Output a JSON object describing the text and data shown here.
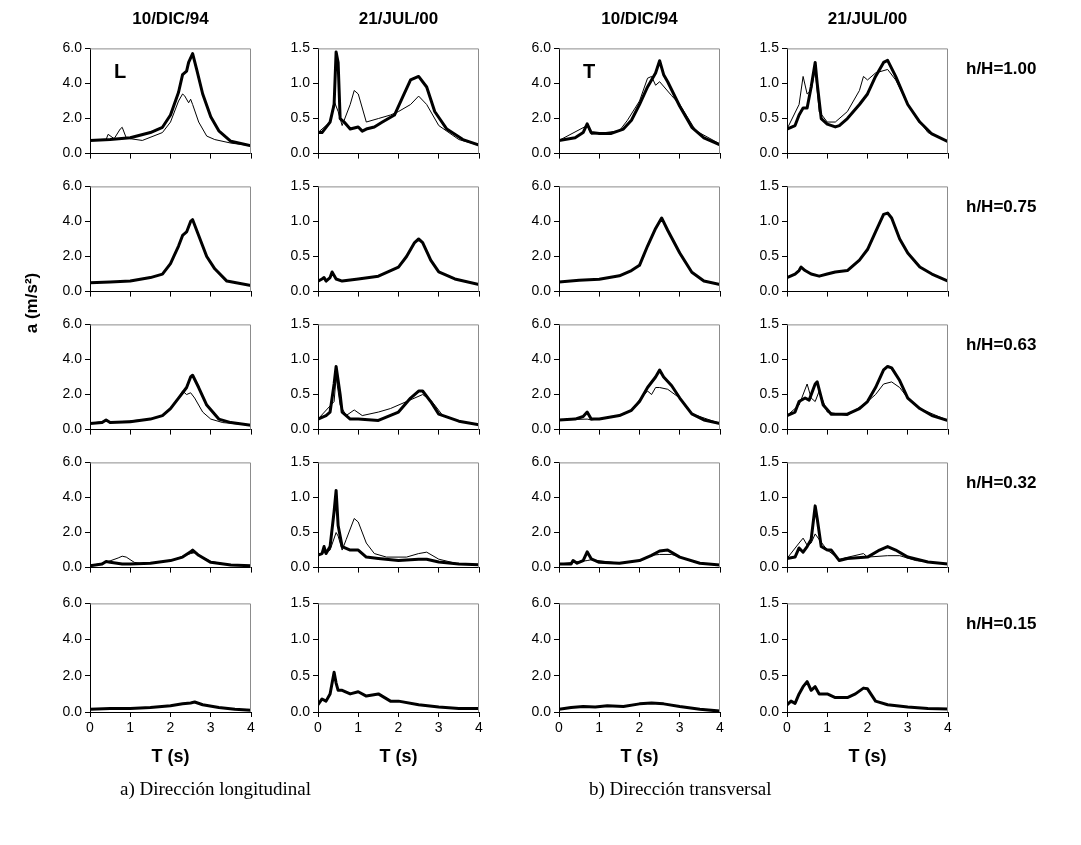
{
  "chart_data": [
    {
      "type": "line",
      "title": "10/DIC/94",
      "annotations": [
        "L"
      ],
      "marker": "none",
      "tick_labels": "y",
      "xlim": [
        0,
        4
      ],
      "xticks": [
        0,
        1,
        2,
        3,
        4
      ],
      "ylim": [
        0,
        6
      ],
      "yticks": [
        {
          "value": 0,
          "label": "0.0"
        },
        {
          "value": 2,
          "label": "2.0"
        },
        {
          "value": 4,
          "label": "4.0"
        },
        {
          "value": 6,
          "label": "6.0"
        }
      ],
      "series": [
        {
          "color": "#000000",
          "x": [
            0,
            0.5,
            1.0,
            1.5,
            1.8,
            2.0,
            2.2,
            2.3,
            2.4,
            2.45,
            2.55,
            2.65,
            2.8,
            3.0,
            3.2,
            3.5,
            4
          ],
          "values": [
            0.75,
            0.8,
            0.9,
            1.2,
            1.5,
            2.2,
            3.5,
            4.5,
            4.7,
            5.2,
            5.7,
            4.8,
            3.4,
            2.1,
            1.3,
            0.7,
            0.45
          ]
        },
        {
          "color": "#000000",
          "x": [
            0,
            0.4,
            0.45,
            0.6,
            0.75,
            0.8,
            0.9,
            1.0,
            1.3,
            1.8,
            2.0,
            2.2,
            2.3,
            2.35,
            2.45,
            2.5,
            2.55,
            2.7,
            2.9,
            3.1,
            3.5,
            4
          ],
          "values": [
            0.75,
            0.8,
            1.1,
            0.85,
            1.4,
            1.5,
            0.9,
            0.85,
            0.75,
            1.2,
            1.8,
            3.0,
            3.4,
            3.3,
            2.9,
            3.1,
            2.8,
            1.8,
            1.0,
            0.8,
            0.6,
            0.45
          ]
        }
      ]
    },
    {
      "type": "line",
      "title": "21/JUL/00",
      "marker": "none",
      "tick_labels": "y",
      "xlim": [
        0,
        4
      ],
      "xticks": [
        0,
        1,
        2,
        3,
        4
      ],
      "ylim": [
        0,
        1.5
      ],
      "yticks": [
        {
          "value": 0,
          "label": "0.0"
        },
        {
          "value": 0.5,
          "label": "0.5"
        },
        {
          "value": 1,
          "label": "1.0"
        },
        {
          "value": 1.5,
          "label": "1.5"
        }
      ],
      "series": [
        {
          "color": "#000000",
          "x": [
            0,
            0.1,
            0.3,
            0.4,
            0.45,
            0.5,
            0.55,
            0.65,
            0.8,
            1.0,
            1.1,
            1.2,
            1.4,
            1.6,
            1.9,
            2.1,
            2.3,
            2.5,
            2.7,
            2.9,
            3.2,
            3.6,
            4
          ],
          "values": [
            0.3,
            0.3,
            0.45,
            0.7,
            1.45,
            1.3,
            0.5,
            0.45,
            0.35,
            0.38,
            0.32,
            0.35,
            0.38,
            0.45,
            0.55,
            0.8,
            1.05,
            1.1,
            0.95,
            0.6,
            0.35,
            0.2,
            0.12
          ]
        },
        {
          "color": "#000000",
          "x": [
            0,
            0.3,
            0.4,
            0.5,
            0.6,
            0.8,
            0.9,
            1.0,
            1.2,
            1.5,
            1.8,
            2.0,
            2.3,
            2.5,
            2.7,
            3.0,
            3.5,
            4
          ],
          "values": [
            0.3,
            0.45,
            0.75,
            0.6,
            0.4,
            0.7,
            0.9,
            0.85,
            0.45,
            0.5,
            0.55,
            0.6,
            0.7,
            0.82,
            0.7,
            0.4,
            0.2,
            0.12
          ]
        }
      ]
    },
    {
      "type": "line",
      "title": "10/DIC/94",
      "annotations": [
        "T"
      ],
      "marker": "none",
      "tick_labels": "y",
      "xlim": [
        0,
        4
      ],
      "xticks": [
        0,
        1,
        2,
        3,
        4
      ],
      "ylim": [
        0,
        6
      ],
      "yticks": [
        {
          "value": 0,
          "label": "0.0"
        },
        {
          "value": 2,
          "label": "2.0"
        },
        {
          "value": 4,
          "label": "4.0"
        },
        {
          "value": 6,
          "label": "6.0"
        }
      ],
      "series": [
        {
          "color": "#000000",
          "x": [
            0,
            0.4,
            0.6,
            0.7,
            0.8,
            1.0,
            1.3,
            1.6,
            1.8,
            2.0,
            2.2,
            2.4,
            2.5,
            2.6,
            2.7,
            3.0,
            3.3,
            3.6,
            4
          ],
          "values": [
            0.75,
            0.9,
            1.2,
            1.7,
            1.2,
            1.15,
            1.15,
            1.4,
            1.9,
            2.8,
            3.8,
            4.6,
            5.3,
            4.5,
            4.1,
            2.7,
            1.5,
            0.9,
            0.5
          ]
        },
        {
          "color": "#000000",
          "x": [
            0,
            0.7,
            0.8,
            1.5,
            1.7,
            2.0,
            2.2,
            2.3,
            2.4,
            2.5,
            2.8,
            3.0,
            3.4,
            4
          ],
          "values": [
            0.75,
            1.6,
            1.1,
            1.3,
            1.9,
            3.0,
            4.3,
            4.4,
            3.9,
            4.1,
            3.3,
            2.8,
            1.3,
            0.55
          ]
        }
      ]
    },
    {
      "type": "line",
      "title": "21/JUL/00",
      "annotations": [
        "h/H=1.00"
      ],
      "marker": "none",
      "tick_labels": "y",
      "xlim": [
        0,
        4
      ],
      "xticks": [
        0,
        1,
        2,
        3,
        4
      ],
      "ylim": [
        0,
        1.5
      ],
      "yticks": [
        {
          "value": 0,
          "label": "0.0"
        },
        {
          "value": 0.5,
          "label": "0.5"
        },
        {
          "value": 1,
          "label": "1.0"
        },
        {
          "value": 1.5,
          "label": "1.5"
        }
      ],
      "series": [
        {
          "color": "#000000",
          "x": [
            0,
            0.2,
            0.3,
            0.4,
            0.5,
            0.6,
            0.7,
            0.75,
            0.85,
            1.0,
            1.2,
            1.3,
            1.5,
            1.8,
            2.0,
            2.2,
            2.4,
            2.5,
            2.7,
            3.0,
            3.3,
            3.6,
            4
          ],
          "values": [
            0.35,
            0.4,
            0.55,
            0.65,
            0.65,
            0.95,
            1.3,
            1.0,
            0.5,
            0.42,
            0.38,
            0.4,
            0.5,
            0.7,
            0.85,
            1.1,
            1.3,
            1.33,
            1.1,
            0.7,
            0.45,
            0.28,
            0.17
          ]
        },
        {
          "color": "#000000",
          "x": [
            0,
            0.3,
            0.4,
            0.5,
            0.6,
            0.7,
            0.8,
            1.0,
            1.2,
            1.5,
            1.8,
            1.9,
            2.0,
            2.2,
            2.5,
            2.7,
            3.0,
            3.5,
            4
          ],
          "values": [
            0.35,
            0.7,
            1.1,
            0.85,
            0.9,
            1.2,
            0.6,
            0.45,
            0.45,
            0.6,
            0.9,
            1.1,
            1.05,
            1.15,
            1.2,
            1.05,
            0.7,
            0.3,
            0.18
          ]
        }
      ]
    },
    {
      "type": "line",
      "marker": "none",
      "tick_labels": "y",
      "xlim": [
        0,
        4
      ],
      "xticks": [
        0,
        1,
        2,
        3,
        4
      ],
      "ylim": [
        0,
        6
      ],
      "yticks": [
        {
          "value": 0,
          "label": "0.0"
        },
        {
          "value": 2,
          "label": "2.0"
        },
        {
          "value": 4,
          "label": "4.0"
        },
        {
          "value": 6,
          "label": "6.0"
        }
      ],
      "series": [
        {
          "color": "#000000",
          "x": [
            0,
            0.5,
            1,
            1.5,
            1.8,
            2.0,
            2.2,
            2.3,
            2.4,
            2.5,
            2.55,
            2.7,
            2.9,
            3.1,
            3.4,
            4
          ],
          "values": [
            0.5,
            0.55,
            0.6,
            0.8,
            1.0,
            1.6,
            2.6,
            3.2,
            3.4,
            4.0,
            4.1,
            3.2,
            2.0,
            1.3,
            0.6,
            0.35
          ]
        }
      ]
    },
    {
      "type": "line",
      "marker": "none",
      "tick_labels": "y",
      "xlim": [
        0,
        4
      ],
      "xticks": [
        0,
        1,
        2,
        3,
        4
      ],
      "ylim": [
        0,
        1.5
      ],
      "yticks": [
        {
          "value": 0,
          "label": "0.0"
        },
        {
          "value": 0.5,
          "label": "0.5"
        },
        {
          "value": 1,
          "label": "1.0"
        },
        {
          "value": 1.5,
          "label": "1.5"
        }
      ],
      "series": [
        {
          "color": "#000000",
          "x": [
            0,
            0.1,
            0.15,
            0.2,
            0.3,
            0.35,
            0.45,
            0.6,
            1.0,
            1.5,
            2.0,
            2.2,
            2.4,
            2.5,
            2.6,
            2.8,
            3.0,
            3.4,
            4
          ],
          "values": [
            0.15,
            0.18,
            0.2,
            0.15,
            0.2,
            0.28,
            0.18,
            0.15,
            0.18,
            0.22,
            0.35,
            0.5,
            0.7,
            0.75,
            0.7,
            0.45,
            0.28,
            0.18,
            0.1
          ]
        }
      ]
    },
    {
      "type": "line",
      "marker": "none",
      "tick_labels": "y",
      "xlim": [
        0,
        4
      ],
      "xticks": [
        0,
        1,
        2,
        3,
        4
      ],
      "ylim": [
        0,
        6
      ],
      "yticks": [
        {
          "value": 0,
          "label": "0.0"
        },
        {
          "value": 2,
          "label": "2.0"
        },
        {
          "value": 4,
          "label": "4.0"
        },
        {
          "value": 6,
          "label": "6.0"
        }
      ],
      "series": [
        {
          "color": "#000000",
          "x": [
            0,
            0.5,
            1.0,
            1.5,
            1.8,
            2.0,
            2.2,
            2.4,
            2.5,
            2.55,
            2.7,
            3.0,
            3.3,
            3.6,
            4
          ],
          "values": [
            0.55,
            0.65,
            0.7,
            0.9,
            1.2,
            1.5,
            2.6,
            3.6,
            4.0,
            4.2,
            3.5,
            2.2,
            1.1,
            0.6,
            0.4
          ]
        }
      ]
    },
    {
      "type": "line",
      "annotations": [
        "h/H=0.75"
      ],
      "marker": "none",
      "tick_labels": "y",
      "xlim": [
        0,
        4
      ],
      "xticks": [
        0,
        1,
        2,
        3,
        4
      ],
      "ylim": [
        0,
        1.5
      ],
      "yticks": [
        {
          "value": 0,
          "label": "0.0"
        },
        {
          "value": 0.5,
          "label": "0.5"
        },
        {
          "value": 1,
          "label": "1.0"
        },
        {
          "value": 1.5,
          "label": "1.5"
        }
      ],
      "series": [
        {
          "color": "#000000",
          "x": [
            0,
            0.2,
            0.3,
            0.35,
            0.45,
            0.6,
            0.8,
            1.0,
            1.2,
            1.5,
            1.8,
            2.0,
            2.2,
            2.4,
            2.5,
            2.6,
            2.8,
            3.0,
            3.3,
            3.6,
            4
          ],
          "values": [
            0.2,
            0.25,
            0.3,
            0.35,
            0.3,
            0.25,
            0.22,
            0.25,
            0.28,
            0.3,
            0.45,
            0.6,
            0.85,
            1.1,
            1.12,
            1.05,
            0.75,
            0.55,
            0.35,
            0.25,
            0.15
          ]
        }
      ]
    },
    {
      "type": "line",
      "ylabel": "a (m/s²)",
      "marker": "none",
      "tick_labels": "y",
      "xlim": [
        0,
        4
      ],
      "xticks": [
        0,
        1,
        2,
        3,
        4
      ],
      "ylim": [
        0,
        6
      ],
      "yticks": [
        {
          "value": 0,
          "label": "0.0"
        },
        {
          "value": 2,
          "label": "2.0"
        },
        {
          "value": 4,
          "label": "4.0"
        },
        {
          "value": 6,
          "label": "6.0"
        }
      ],
      "series": [
        {
          "color": "#000000",
          "x": [
            0,
            0.3,
            0.4,
            0.5,
            1,
            1.5,
            1.8,
            2.0,
            2.2,
            2.4,
            2.5,
            2.55,
            2.7,
            2.9,
            3.2,
            3.5,
            4
          ],
          "values": [
            0.35,
            0.4,
            0.55,
            0.4,
            0.45,
            0.6,
            0.8,
            1.2,
            1.8,
            2.4,
            3.0,
            3.1,
            2.4,
            1.4,
            0.6,
            0.4,
            0.25
          ]
        },
        {
          "color": "#000000",
          "x": [
            0,
            0.4,
            0.5,
            1.5,
            1.8,
            2.0,
            2.2,
            2.3,
            2.4,
            2.5,
            2.6,
            2.8,
            3.0,
            3.3,
            4
          ],
          "values": [
            0.35,
            0.5,
            0.4,
            0.6,
            0.8,
            1.2,
            1.8,
            2.2,
            2.0,
            2.1,
            1.8,
            1.0,
            0.6,
            0.4,
            0.25
          ]
        }
      ]
    },
    {
      "type": "line",
      "marker": "none",
      "tick_labels": "y",
      "xlim": [
        0,
        4
      ],
      "xticks": [
        0,
        1,
        2,
        3,
        4
      ],
      "ylim": [
        0,
        1.5
      ],
      "yticks": [
        {
          "value": 0,
          "label": "0.0"
        },
        {
          "value": 0.5,
          "label": "0.5"
        },
        {
          "value": 1,
          "label": "1.0"
        },
        {
          "value": 1.5,
          "label": "1.5"
        }
      ],
      "series": [
        {
          "color": "#000000",
          "x": [
            0,
            0.2,
            0.3,
            0.4,
            0.45,
            0.55,
            0.6,
            0.8,
            1.0,
            1.5,
            2.0,
            2.3,
            2.5,
            2.6,
            2.8,
            3.0,
            3.5,
            4
          ],
          "values": [
            0.15,
            0.2,
            0.25,
            0.65,
            0.9,
            0.5,
            0.25,
            0.15,
            0.15,
            0.13,
            0.25,
            0.45,
            0.55,
            0.55,
            0.4,
            0.22,
            0.12,
            0.07
          ]
        },
        {
          "color": "#000000",
          "x": [
            0,
            0.4,
            0.45,
            0.55,
            0.7,
            0.9,
            1.1,
            1.5,
            1.8,
            2.2,
            2.6,
            2.8,
            2.9,
            3.1,
            3.5,
            4
          ],
          "values": [
            0.15,
            0.4,
            0.75,
            0.35,
            0.2,
            0.28,
            0.2,
            0.25,
            0.3,
            0.4,
            0.5,
            0.42,
            0.35,
            0.2,
            0.12,
            0.07
          ]
        }
      ]
    },
    {
      "type": "line",
      "marker": "none",
      "tick_labels": "y",
      "xlim": [
        0,
        4
      ],
      "xticks": [
        0,
        1,
        2,
        3,
        4
      ],
      "ylim": [
        0,
        6
      ],
      "yticks": [
        {
          "value": 0,
          "label": "0.0"
        },
        {
          "value": 2,
          "label": "2.0"
        },
        {
          "value": 4,
          "label": "4.0"
        },
        {
          "value": 6,
          "label": "6.0"
        }
      ],
      "series": [
        {
          "color": "#000000",
          "x": [
            0,
            0.4,
            0.6,
            0.7,
            0.8,
            1.0,
            1.5,
            1.8,
            2.0,
            2.2,
            2.4,
            2.5,
            2.6,
            2.8,
            3.0,
            3.3,
            3.6,
            4
          ],
          "values": [
            0.55,
            0.6,
            0.75,
            1.0,
            0.6,
            0.6,
            0.8,
            1.1,
            1.6,
            2.4,
            3.0,
            3.4,
            3.0,
            2.5,
            1.8,
            0.9,
            0.55,
            0.35
          ]
        },
        {
          "color": "#000000",
          "x": [
            0,
            0.7,
            0.8,
            1.5,
            1.8,
            2.0,
            2.2,
            2.3,
            2.4,
            2.5,
            2.7,
            3.0,
            3.3,
            4
          ],
          "values": [
            0.55,
            0.6,
            0.55,
            0.8,
            1.1,
            1.7,
            2.2,
            2.0,
            2.4,
            2.4,
            2.3,
            1.8,
            0.9,
            0.35
          ]
        }
      ]
    },
    {
      "type": "line",
      "annotations": [
        "h/H=0.63"
      ],
      "marker": "none",
      "tick_labels": "y",
      "xlim": [
        0,
        4
      ],
      "xticks": [
        0,
        1,
        2,
        3,
        4
      ],
      "ylim": [
        0,
        1.5
      ],
      "yticks": [
        {
          "value": 0,
          "label": "0.0"
        },
        {
          "value": 0.5,
          "label": "0.5"
        },
        {
          "value": 1,
          "label": "1.0"
        },
        {
          "value": 1.5,
          "label": "1.5"
        }
      ],
      "series": [
        {
          "color": "#000000",
          "x": [
            0,
            0.2,
            0.3,
            0.45,
            0.55,
            0.7,
            0.75,
            0.9,
            1.1,
            1.5,
            1.8,
            2.0,
            2.2,
            2.4,
            2.5,
            2.6,
            2.8,
            3.0,
            3.3,
            3.6,
            4
          ],
          "values": [
            0.2,
            0.25,
            0.4,
            0.45,
            0.42,
            0.65,
            0.68,
            0.35,
            0.22,
            0.22,
            0.3,
            0.4,
            0.6,
            0.85,
            0.9,
            0.88,
            0.7,
            0.45,
            0.3,
            0.2,
            0.13
          ]
        },
        {
          "color": "#000000",
          "x": [
            0,
            0.3,
            0.5,
            0.6,
            0.7,
            0.8,
            1.0,
            1.5,
            2.0,
            2.2,
            2.4,
            2.6,
            2.8,
            3.0,
            3.3,
            4
          ],
          "values": [
            0.2,
            0.35,
            0.65,
            0.45,
            0.4,
            0.55,
            0.25,
            0.2,
            0.4,
            0.5,
            0.65,
            0.68,
            0.6,
            0.45,
            0.3,
            0.13
          ]
        }
      ]
    },
    {
      "type": "line",
      "marker": "none",
      "tick_labels": "y",
      "xlim": [
        0,
        4
      ],
      "xticks": [
        0,
        1,
        2,
        3,
        4
      ],
      "ylim": [
        0,
        6
      ],
      "yticks": [
        {
          "value": 0,
          "label": "0.0"
        },
        {
          "value": 2,
          "label": "2.0"
        },
        {
          "value": 4,
          "label": "4.0"
        },
        {
          "value": 6,
          "label": "6.0"
        }
      ],
      "series": [
        {
          "color": "#000000",
          "x": [
            0,
            0.3,
            0.4,
            0.5,
            0.8,
            1.0,
            1.5,
            2.0,
            2.3,
            2.5,
            2.55,
            2.7,
            3.0,
            3.5,
            4
          ],
          "values": [
            0.1,
            0.2,
            0.35,
            0.3,
            0.2,
            0.2,
            0.25,
            0.4,
            0.6,
            0.9,
            1.0,
            0.7,
            0.3,
            0.15,
            0.1
          ]
        },
        {
          "color": "#000000",
          "x": [
            0,
            0.4,
            0.7,
            0.8,
            0.9,
            1.1,
            1.3,
            2.0,
            2.5,
            2.6,
            3.0,
            3.5,
            4
          ],
          "values": [
            0.1,
            0.3,
            0.55,
            0.65,
            0.6,
            0.3,
            0.2,
            0.4,
            0.8,
            0.85,
            0.35,
            0.15,
            0.1
          ]
        }
      ]
    },
    {
      "type": "line",
      "marker": "none",
      "tick_labels": "y",
      "xlim": [
        0,
        4
      ],
      "xticks": [
        0,
        1,
        2,
        3,
        4
      ],
      "ylim": [
        0,
        1.5
      ],
      "yticks": [
        {
          "value": 0,
          "label": "0.0"
        },
        {
          "value": 0.5,
          "label": "0.5"
        },
        {
          "value": 1,
          "label": "1.0"
        },
        {
          "value": 1.5,
          "label": "1.5"
        }
      ],
      "series": [
        {
          "color": "#000000",
          "x": [
            0,
            0.1,
            0.15,
            0.2,
            0.3,
            0.4,
            0.45,
            0.5,
            0.6,
            0.8,
            1.0,
            1.2,
            1.5,
            2.0,
            2.5,
            2.7,
            3.0,
            3.5,
            4
          ],
          "values": [
            0.18,
            0.2,
            0.3,
            0.2,
            0.3,
            0.8,
            1.1,
            0.6,
            0.3,
            0.25,
            0.25,
            0.15,
            0.13,
            0.1,
            0.12,
            0.12,
            0.08,
            0.05,
            0.04
          ]
        },
        {
          "color": "#000000",
          "x": [
            0,
            0.3,
            0.45,
            0.5,
            0.6,
            0.7,
            0.9,
            1.0,
            1.2,
            1.4,
            1.7,
            2.2,
            2.5,
            2.7,
            3.0,
            3.5,
            4
          ],
          "values": [
            0.18,
            0.25,
            0.5,
            0.45,
            0.25,
            0.4,
            0.7,
            0.65,
            0.35,
            0.2,
            0.15,
            0.15,
            0.2,
            0.22,
            0.12,
            0.05,
            0.04
          ]
        }
      ]
    },
    {
      "type": "line",
      "marker": "none",
      "tick_labels": "y",
      "xlim": [
        0,
        4
      ],
      "xticks": [
        0,
        1,
        2,
        3,
        4
      ],
      "ylim": [
        0,
        6
      ],
      "yticks": [
        {
          "value": 0,
          "label": "0.0"
        },
        {
          "value": 2,
          "label": "2.0"
        },
        {
          "value": 4,
          "label": "4.0"
        },
        {
          "value": 6,
          "label": "6.0"
        }
      ],
      "series": [
        {
          "color": "#000000",
          "x": [
            0,
            0.3,
            0.35,
            0.45,
            0.6,
            0.7,
            0.8,
            1.0,
            1.5,
            2.0,
            2.3,
            2.5,
            2.7,
            3.0,
            3.5,
            4
          ],
          "values": [
            0.2,
            0.2,
            0.4,
            0.25,
            0.4,
            0.9,
            0.5,
            0.3,
            0.25,
            0.4,
            0.7,
            0.95,
            1.0,
            0.6,
            0.25,
            0.15
          ]
        },
        {
          "color": "#000000",
          "x": [
            0,
            0.7,
            0.8,
            1.5,
            2.0,
            2.3,
            2.5,
            2.8,
            3.0,
            3.5,
            4
          ],
          "values": [
            0.2,
            0.4,
            0.45,
            0.25,
            0.4,
            0.7,
            0.75,
            0.75,
            0.6,
            0.25,
            0.15
          ]
        }
      ]
    },
    {
      "type": "line",
      "annotations": [
        "h/H=0.32"
      ],
      "marker": "none",
      "tick_labels": "y",
      "xlim": [
        0,
        4
      ],
      "xticks": [
        0,
        1,
        2,
        3,
        4
      ],
      "ylim": [
        0,
        1.5
      ],
      "yticks": [
        {
          "value": 0,
          "label": "0.0"
        },
        {
          "value": 0.5,
          "label": "0.5"
        },
        {
          "value": 1,
          "label": "1.0"
        },
        {
          "value": 1.5,
          "label": "1.5"
        }
      ],
      "series": [
        {
          "color": "#000000",
          "x": [
            0,
            0.2,
            0.3,
            0.4,
            0.5,
            0.6,
            0.7,
            0.75,
            0.85,
            1.0,
            1.1,
            1.3,
            1.5,
            2.0,
            2.3,
            2.5,
            2.7,
            3.0,
            3.5,
            4
          ],
          "values": [
            0.13,
            0.15,
            0.28,
            0.22,
            0.3,
            0.4,
            0.88,
            0.7,
            0.3,
            0.25,
            0.25,
            0.1,
            0.13,
            0.15,
            0.25,
            0.3,
            0.25,
            0.15,
            0.08,
            0.05
          ]
        },
        {
          "color": "#000000",
          "x": [
            0,
            0.3,
            0.4,
            0.5,
            0.6,
            0.7,
            0.8,
            1.0,
            1.3,
            1.9,
            2.0,
            2.5,
            2.8,
            3.2,
            4
          ],
          "values": [
            0.13,
            0.35,
            0.42,
            0.32,
            0.35,
            0.48,
            0.4,
            0.25,
            0.12,
            0.2,
            0.15,
            0.17,
            0.17,
            0.1,
            0.05
          ]
        }
      ]
    },
    {
      "type": "line",
      "xlabel": "T (s)",
      "annotations": [
        "a) Dirección longitudinal"
      ],
      "marker": "none",
      "xlim": [
        0,
        4
      ],
      "xticks": [
        0,
        1,
        2,
        3,
        4
      ],
      "ylim": [
        0,
        6
      ],
      "yticks": [
        {
          "value": 0,
          "label": "0.0"
        },
        {
          "value": 2,
          "label": "2.0"
        },
        {
          "value": 4,
          "label": "4.0"
        },
        {
          "value": 6,
          "label": "6.0"
        }
      ],
      "series": [
        {
          "color": "#000000",
          "x": [
            0,
            0.5,
            1,
            1.5,
            2,
            2.3,
            2.5,
            2.6,
            2.8,
            3.2,
            3.6,
            4
          ],
          "values": [
            0.15,
            0.2,
            0.2,
            0.25,
            0.35,
            0.45,
            0.5,
            0.55,
            0.4,
            0.25,
            0.15,
            0.1
          ]
        }
      ]
    },
    {
      "type": "line",
      "xlabel": "T (s)",
      "marker": "none",
      "xlim": [
        0,
        4
      ],
      "xticks": [
        0,
        1,
        2,
        3,
        4
      ],
      "ylim": [
        0,
        1.5
      ],
      "yticks": [
        {
          "value": 0,
          "label": "0.0"
        },
        {
          "value": 0.5,
          "label": "0.5"
        },
        {
          "value": 1,
          "label": "1.0"
        },
        {
          "value": 1.5,
          "label": "1.5"
        }
      ],
      "series": [
        {
          "color": "#000000",
          "x": [
            0,
            0.1,
            0.2,
            0.3,
            0.4,
            0.45,
            0.5,
            0.6,
            0.8,
            1.0,
            1.2,
            1.5,
            1.8,
            2.0,
            2.5,
            3.0,
            3.5,
            4
          ],
          "values": [
            0.1,
            0.18,
            0.15,
            0.25,
            0.55,
            0.4,
            0.3,
            0.3,
            0.25,
            0.28,
            0.22,
            0.25,
            0.15,
            0.15,
            0.1,
            0.07,
            0.05,
            0.05
          ]
        }
      ]
    },
    {
      "type": "line",
      "xlabel": "T (s)",
      "annotations": [
        "b) Dirección transversal"
      ],
      "marker": "none",
      "xlim": [
        0,
        4
      ],
      "xticks": [
        0,
        1,
        2,
        3,
        4
      ],
      "ylim": [
        0,
        6
      ],
      "yticks": [
        {
          "value": 0,
          "label": "0.0"
        },
        {
          "value": 2,
          "label": "2.0"
        },
        {
          "value": 4,
          "label": "4.0"
        },
        {
          "value": 6,
          "label": "6.0"
        }
      ],
      "series": [
        {
          "color": "#000000",
          "x": [
            0,
            0.3,
            0.6,
            0.9,
            1.2,
            1.6,
            2.0,
            2.3,
            2.6,
            3.0,
            3.5,
            4
          ],
          "values": [
            0.15,
            0.25,
            0.3,
            0.28,
            0.35,
            0.3,
            0.45,
            0.5,
            0.45,
            0.3,
            0.15,
            0.05
          ]
        }
      ]
    },
    {
      "type": "line",
      "xlabel": "T (s)",
      "annotations": [
        "h/H=0.15"
      ],
      "marker": "none",
      "xlim": [
        0,
        4
      ],
      "xticks": [
        0,
        1,
        2,
        3,
        4
      ],
      "ylim": [
        0,
        1.5
      ],
      "yticks": [
        {
          "value": 0,
          "label": "0.0"
        },
        {
          "value": 0.5,
          "label": "0.5"
        },
        {
          "value": 1,
          "label": "1.0"
        },
        {
          "value": 1.5,
          "label": "1.5"
        }
      ],
      "series": [
        {
          "color": "#000000",
          "x": [
            0,
            0.1,
            0.2,
            0.3,
            0.4,
            0.5,
            0.6,
            0.7,
            0.8,
            1.0,
            1.2,
            1.5,
            1.7,
            1.9,
            2.0,
            2.2,
            2.5,
            3.0,
            3.5,
            4
          ],
          "values": [
            0.1,
            0.15,
            0.12,
            0.25,
            0.35,
            0.42,
            0.3,
            0.35,
            0.25,
            0.25,
            0.2,
            0.2,
            0.25,
            0.33,
            0.32,
            0.15,
            0.1,
            0.07,
            0.05,
            0.04
          ]
        }
      ]
    }
  ]
}
